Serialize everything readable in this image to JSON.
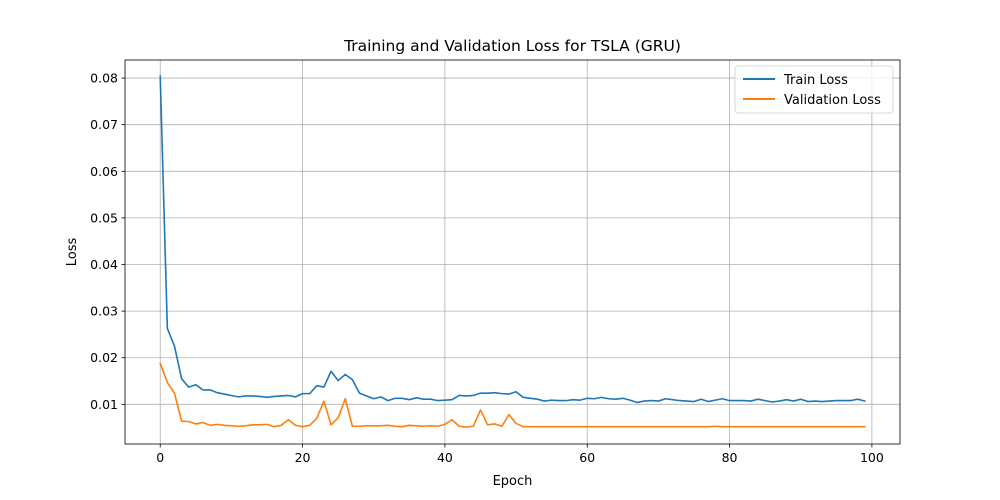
{
  "chart_data": {
    "type": "line",
    "title": "Training and Validation Loss for TSLA (GRU)",
    "xlabel": "Epoch",
    "ylabel": "Loss",
    "xlim": [
      -4.95,
      103.95
    ],
    "ylim": [
      0.00149,
      0.08388
    ],
    "xticks": [
      0,
      20,
      40,
      60,
      80,
      100
    ],
    "yticks": [
      0.01,
      0.02,
      0.03,
      0.04,
      0.05,
      0.06,
      0.07,
      0.08
    ],
    "ytick_labels": [
      "0.01",
      "0.02",
      "0.03",
      "0.04",
      "0.05",
      "0.06",
      "0.07",
      "0.08"
    ],
    "grid": true,
    "legend_position": "upper right",
    "series": [
      {
        "name": "Train Loss",
        "color": "#1f77b4",
        "values": [
          0.0804,
          0.0263,
          0.0225,
          0.0155,
          0.0137,
          0.0142,
          0.0131,
          0.0131,
          0.0125,
          0.0122,
          0.0119,
          0.0116,
          0.0118,
          0.0118,
          0.0117,
          0.0115,
          0.0117,
          0.0118,
          0.0119,
          0.0116,
          0.0123,
          0.0123,
          0.014,
          0.0137,
          0.0171,
          0.0151,
          0.0164,
          0.0153,
          0.0124,
          0.0118,
          0.0112,
          0.0116,
          0.0108,
          0.0113,
          0.0113,
          0.011,
          0.0114,
          0.0111,
          0.0111,
          0.0108,
          0.0109,
          0.011,
          0.0119,
          0.0118,
          0.0119,
          0.0124,
          0.0124,
          0.0125,
          0.0123,
          0.0122,
          0.0127,
          0.0115,
          0.0113,
          0.0111,
          0.0107,
          0.0109,
          0.0108,
          0.0108,
          0.011,
          0.0109,
          0.0113,
          0.0112,
          0.0115,
          0.0112,
          0.0111,
          0.0113,
          0.0109,
          0.0104,
          0.0107,
          0.0108,
          0.0107,
          0.0112,
          0.011,
          0.0108,
          0.0107,
          0.0106,
          0.0111,
          0.0106,
          0.0109,
          0.0112,
          0.0108,
          0.0108,
          0.0108,
          0.0107,
          0.0111,
          0.0108,
          0.0105,
          0.0107,
          0.011,
          0.0107,
          0.0111,
          0.0106,
          0.0107,
          0.0106,
          0.0107,
          0.0108,
          0.0108,
          0.0108,
          0.0111,
          0.0107
        ]
      },
      {
        "name": "Validation Loss",
        "color": "#ff7f0e",
        "values": [
          0.0188,
          0.0147,
          0.0124,
          0.0064,
          0.0063,
          0.0058,
          0.0061,
          0.0055,
          0.0057,
          0.0055,
          0.0054,
          0.0053,
          0.0054,
          0.0056,
          0.0056,
          0.0057,
          0.0052,
          0.0055,
          0.0067,
          0.0055,
          0.0052,
          0.0055,
          0.007,
          0.0107,
          0.0056,
          0.0071,
          0.0112,
          0.0053,
          0.0053,
          0.0054,
          0.0054,
          0.0054,
          0.0055,
          0.0053,
          0.0052,
          0.0055,
          0.0054,
          0.0053,
          0.0054,
          0.0053,
          0.0057,
          0.0067,
          0.0053,
          0.0051,
          0.0053,
          0.0088,
          0.0056,
          0.0058,
          0.0053,
          0.0078,
          0.0059,
          0.0052,
          0.0052,
          0.0052,
          0.0052,
          0.0052,
          0.0052,
          0.0052,
          0.0052,
          0.0052,
          0.0052,
          0.0052,
          0.0052,
          0.0052,
          0.0052,
          0.0052,
          0.0052,
          0.0052,
          0.0052,
          0.0052,
          0.0052,
          0.0052,
          0.0052,
          0.0052,
          0.0052,
          0.0052,
          0.0052,
          0.0052,
          0.0053,
          0.0052,
          0.0052,
          0.0052,
          0.0052,
          0.0052,
          0.0052,
          0.0052,
          0.0052,
          0.0052,
          0.0052,
          0.0052,
          0.0052,
          0.0052,
          0.0052,
          0.0052,
          0.0052,
          0.0052,
          0.0052,
          0.0052,
          0.0052,
          0.0052
        ]
      }
    ]
  }
}
